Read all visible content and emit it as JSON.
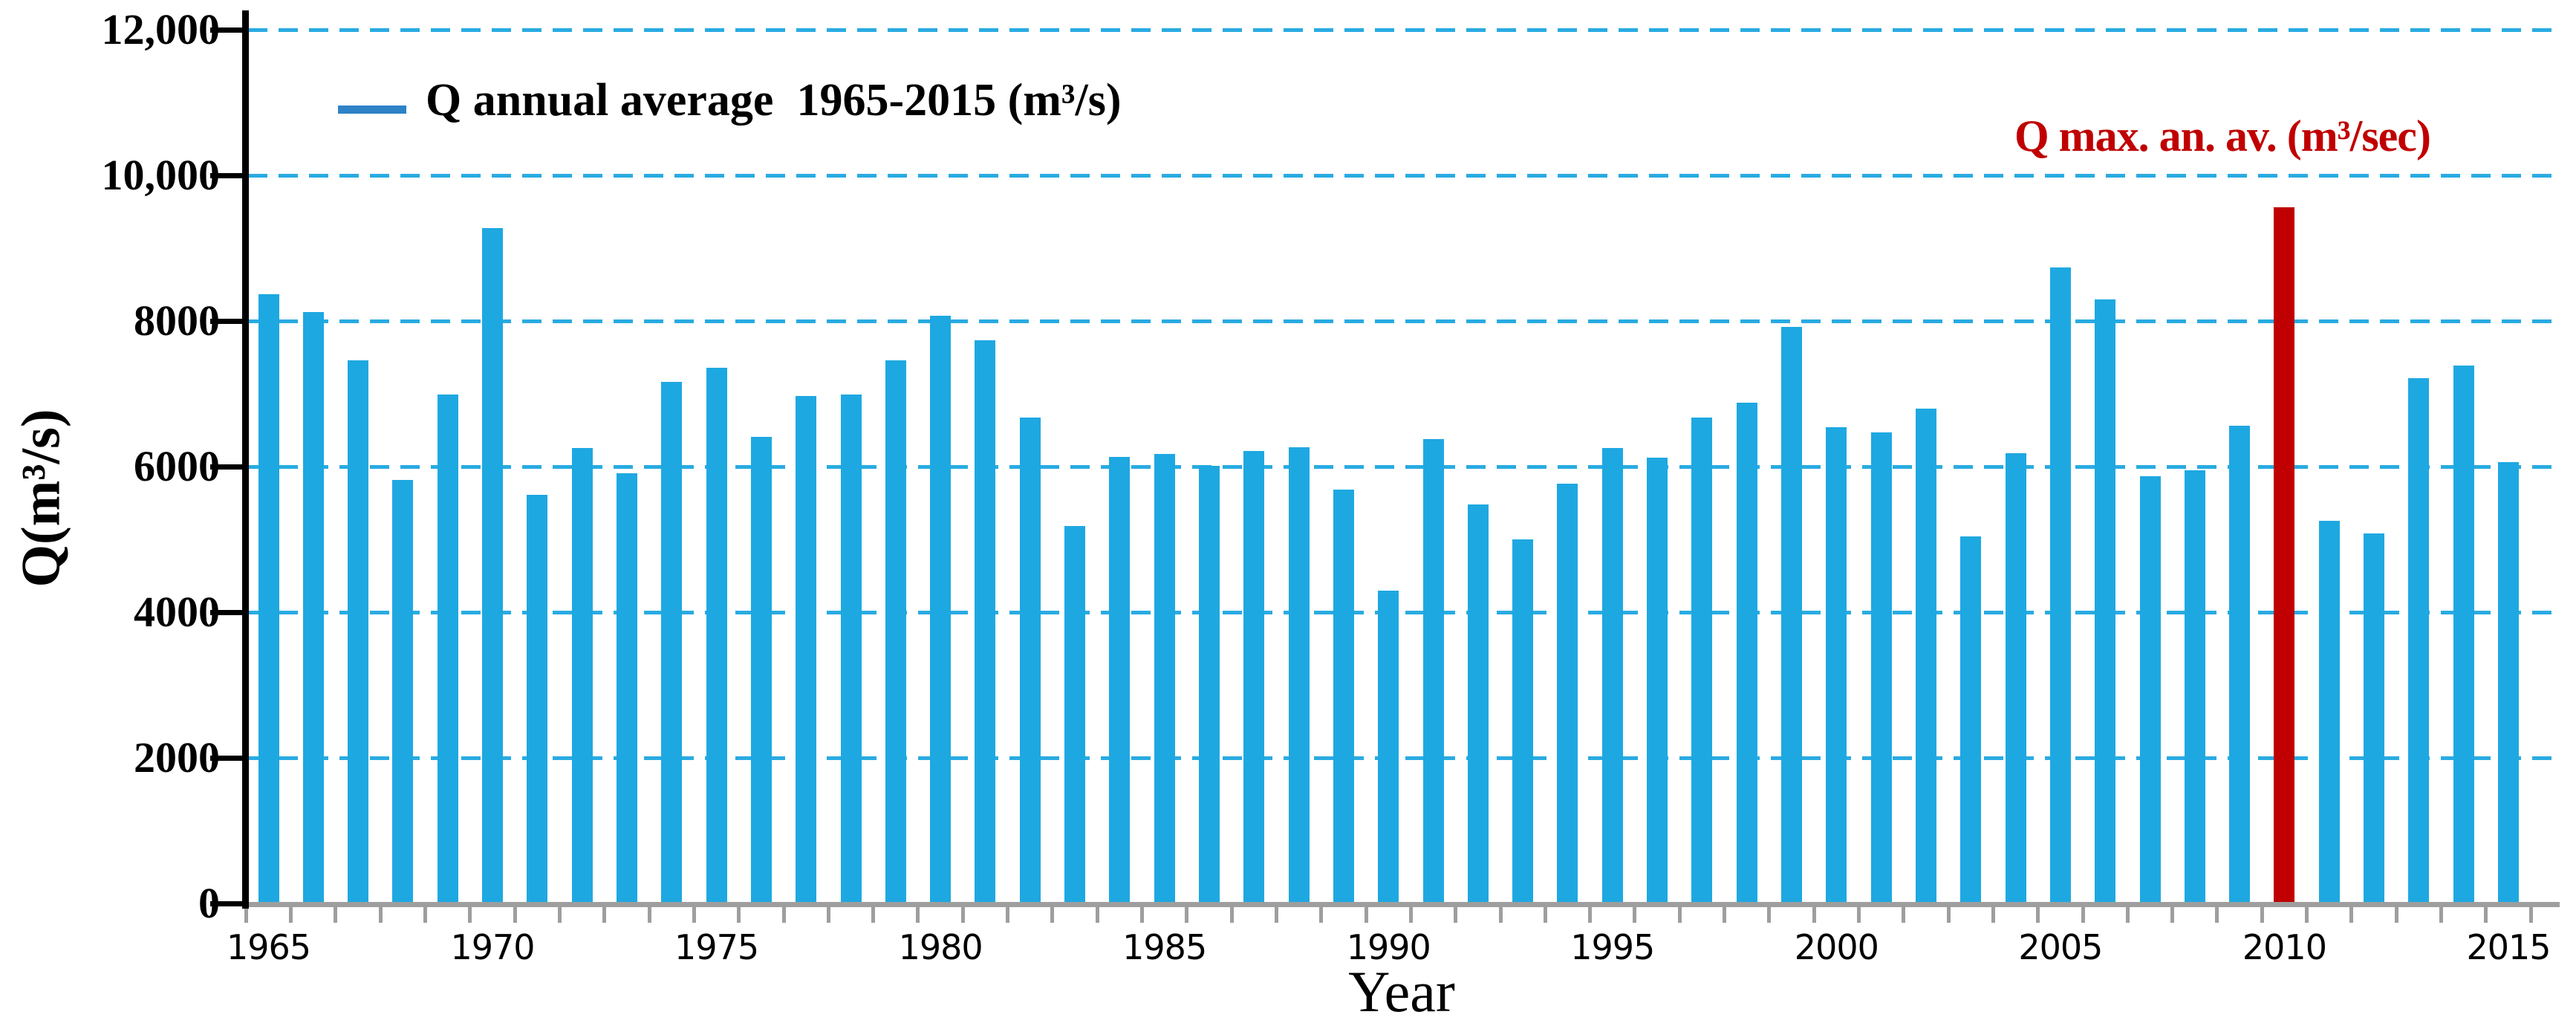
{
  "chart_data": {
    "type": "bar",
    "title": "",
    "xlabel": "Year",
    "ylabel": "Q(m³/s)",
    "ylim": [
      0,
      12000
    ],
    "grid": "dashed horizontal every 2000",
    "legend_position": "top-left inside plot",
    "y_tick_values": [
      0,
      2000,
      4000,
      6000,
      8000,
      10000,
      12000
    ],
    "y_tick_labels": [
      "0",
      "2000",
      "4000",
      "6000",
      "8000",
      "10,000",
      "12,000"
    ],
    "x_tick_label_years": [
      1965,
      1970,
      1975,
      1980,
      1985,
      1990,
      1995,
      2000,
      2005,
      2010,
      2015
    ],
    "legend": {
      "label": "Q annual average  1965-2015 (m³/s)",
      "swatch": "thick horizontal line"
    },
    "annotation": {
      "label": "Q max. an. av. (m³/sec)",
      "applies_to_year": 2010
    },
    "highlight_year": 2010,
    "categories": [
      1965,
      1966,
      1967,
      1968,
      1969,
      1970,
      1971,
      1972,
      1973,
      1974,
      1975,
      1976,
      1977,
      1978,
      1979,
      1980,
      1981,
      1982,
      1983,
      1984,
      1985,
      1986,
      1987,
      1988,
      1989,
      1990,
      1991,
      1992,
      1993,
      1994,
      1995,
      1996,
      1997,
      1998,
      1999,
      2000,
      2001,
      2002,
      2003,
      2004,
      2005,
      2006,
      2007,
      2008,
      2009,
      2010,
      2011,
      2012,
      2013,
      2014,
      2015
    ],
    "values": [
      8370,
      8120,
      7460,
      5820,
      6990,
      9280,
      5610,
      6260,
      5910,
      7160,
      7360,
      6410,
      6970,
      6990,
      7460,
      8070,
      7730,
      6670,
      5180,
      6130,
      6170,
      6010,
      6210,
      6270,
      5680,
      4300,
      6380,
      5480,
      5000,
      5770,
      6260,
      6120,
      6670,
      6880,
      7920,
      6540,
      6470,
      6800,
      5040,
      6180,
      8730,
      8300,
      5870,
      5950,
      6560,
      9560,
      5260,
      5080,
      7210,
      7390,
      6060
    ]
  },
  "colors": {
    "bar": "#1ea8e1",
    "highlight_bar": "#c00000",
    "gridline": "#29abe2",
    "x_axis": "#9e9e9e",
    "y_axis": "#000000",
    "legend_swatch": "#2e82c6",
    "annotation_text": "#c00000"
  }
}
